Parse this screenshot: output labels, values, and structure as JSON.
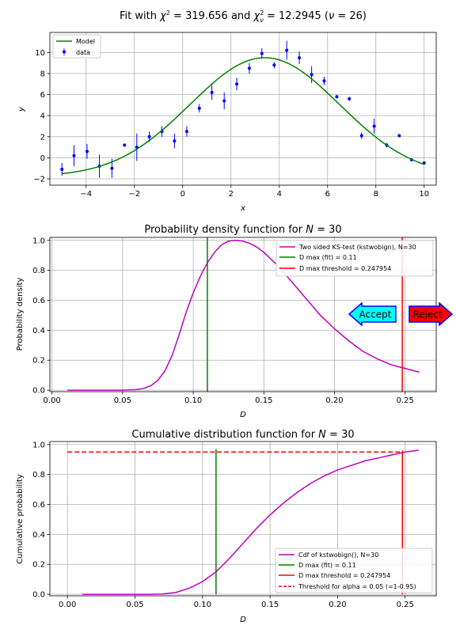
{
  "colors": {
    "model": "#008000",
    "data": "#0000ff",
    "curve": "#bf00bf",
    "dmax": "#008000",
    "threshold": "#ff0000",
    "accept_fill": "#00ffff",
    "reject_fill": "#ff0000",
    "arrow_edge": "#0000ff",
    "grid": "#b0b0b0"
  },
  "chart_data": [
    {
      "type": "scatter",
      "title": "Fit with χ² = 319.656 and χ²ᵥ = 12.2945 (ν = 26)",
      "title_parts": {
        "pre": "Fit with ",
        "chi": "χ",
        "sq": "2",
        "mid": " = 319.656 and ",
        "chi2": "χ",
        "sq2": "2",
        "nu_sub": "ν",
        "post": " = 12.2945 (",
        "nu": "ν",
        "post2": " = 26)"
      },
      "xlabel": "x",
      "ylabel": "y",
      "xlim": [
        -5.5,
        10.5
      ],
      "ylim": [
        -2.6,
        11.9
      ],
      "xticks": [
        -4,
        -2,
        0,
        2,
        4,
        6,
        8,
        10
      ],
      "yticks": [
        -2,
        0,
        2,
        4,
        6,
        8,
        10
      ],
      "grid": true,
      "legend": "top-left",
      "legend_entries": {
        "model": "Model",
        "data": "data"
      },
      "model": {
        "amplitude": 11.3,
        "center": 3.4,
        "sigma": 3.1,
        "offset": -1.8
      },
      "points": [
        {
          "x": -5.0,
          "y": -1.1,
          "err": 0.6
        },
        {
          "x": -4.5,
          "y": 0.2,
          "err": 1.0
        },
        {
          "x": -3.96,
          "y": 0.6,
          "err": 0.7
        },
        {
          "x": -3.45,
          "y": -0.8,
          "err": 1.1
        },
        {
          "x": -2.93,
          "y": -1.0,
          "err": 0.9
        },
        {
          "x": -2.41,
          "y": 1.2,
          "err": 0.15
        },
        {
          "x": -1.9,
          "y": 1.0,
          "err": 1.3
        },
        {
          "x": -1.38,
          "y": 2.0,
          "err": 0.5
        },
        {
          "x": -0.86,
          "y": 2.5,
          "err": 0.5
        },
        {
          "x": -0.34,
          "y": 1.6,
          "err": 0.7
        },
        {
          "x": 0.17,
          "y": 2.5,
          "err": 0.5
        },
        {
          "x": 0.69,
          "y": 4.7,
          "err": 0.4
        },
        {
          "x": 1.21,
          "y": 6.2,
          "err": 0.7
        },
        {
          "x": 1.72,
          "y": 5.4,
          "err": 0.8
        },
        {
          "x": 2.24,
          "y": 7.0,
          "err": 0.6
        },
        {
          "x": 2.76,
          "y": 8.5,
          "err": 0.5
        },
        {
          "x": 3.28,
          "y": 9.9,
          "err": 0.5
        },
        {
          "x": 3.79,
          "y": 8.8,
          "err": 0.3
        },
        {
          "x": 4.31,
          "y": 10.2,
          "err": 0.9
        },
        {
          "x": 4.83,
          "y": 9.5,
          "err": 0.6
        },
        {
          "x": 5.34,
          "y": 7.9,
          "err": 0.8
        },
        {
          "x": 5.86,
          "y": 7.3,
          "err": 0.4
        },
        {
          "x": 6.38,
          "y": 5.8,
          "err": 0.15
        },
        {
          "x": 6.9,
          "y": 5.6,
          "err": 0.2
        },
        {
          "x": 7.41,
          "y": 2.1,
          "err": 0.3
        },
        {
          "x": 7.93,
          "y": 3.0,
          "err": 0.7
        },
        {
          "x": 8.45,
          "y": 1.2,
          "err": 0.2
        },
        {
          "x": 8.97,
          "y": 2.1,
          "err": 0.15
        },
        {
          "x": 9.48,
          "y": -0.2,
          "err": 0.1
        },
        {
          "x": 10.0,
          "y": -0.5,
          "err": 0.1
        }
      ]
    },
    {
      "type": "line",
      "title_prefix": "Probability density function for ",
      "title_n": "N",
      "title_eq": " = 30",
      "xlabel": "D",
      "ylabel": "Probability density",
      "xlim": [
        -0.0015,
        0.272
      ],
      "ylim": [
        -0.01,
        1.02
      ],
      "xticks": [
        0.0,
        0.05,
        0.1,
        0.15,
        0.2,
        0.25
      ],
      "xtick_labels": [
        "0.00",
        "0.05",
        "0.10",
        "0.15",
        "0.20",
        "0.25"
      ],
      "yticks": [
        0.0,
        0.2,
        0.4,
        0.6,
        0.8,
        1.0
      ],
      "ytick_labels": [
        "0.0",
        "0.2",
        "0.4",
        "0.6",
        "0.8",
        "1.0"
      ],
      "grid": true,
      "legend": "top-right",
      "series_name": "Two sided KS-test (kstwobign), N=30",
      "x": [
        0.011,
        0.05,
        0.06,
        0.065,
        0.07,
        0.075,
        0.08,
        0.085,
        0.09,
        0.095,
        0.1,
        0.105,
        0.11,
        0.115,
        0.12,
        0.125,
        0.13,
        0.135,
        0.14,
        0.145,
        0.15,
        0.16,
        0.17,
        0.18,
        0.19,
        0.2,
        0.21,
        0.22,
        0.23,
        0.24,
        0.25,
        0.26
      ],
      "values": [
        0.0,
        0.0,
        0.004,
        0.012,
        0.03,
        0.066,
        0.13,
        0.23,
        0.37,
        0.52,
        0.65,
        0.76,
        0.85,
        0.92,
        0.97,
        0.995,
        1.0,
        0.995,
        0.98,
        0.955,
        0.92,
        0.83,
        0.72,
        0.61,
        0.5,
        0.41,
        0.33,
        0.26,
        0.21,
        0.17,
        0.145,
        0.12
      ],
      "dmax_label": "D max (fit) = 0.11",
      "dmax": 0.11,
      "threshold_label": "D max threshold = 0.247954",
      "threshold": 0.247954,
      "accept_label": "Accept",
      "reject_label": "Reject",
      "annotation_y": 0.5
    },
    {
      "type": "line",
      "title_prefix": "Cumulative distribution function for ",
      "title_n": "N",
      "title_eq": " = 30",
      "xlabel": "D",
      "ylabel": "Cumulative probability",
      "xlim": [
        -0.013,
        0.273
      ],
      "ylim": [
        -0.01,
        1.02
      ],
      "xticks": [
        0.0,
        0.05,
        0.1,
        0.15,
        0.2,
        0.25
      ],
      "xtick_labels": [
        "0.00",
        "0.05",
        "0.10",
        "0.15",
        "0.20",
        "0.25"
      ],
      "yticks": [
        0.0,
        0.2,
        0.4,
        0.6,
        0.8,
        1.0
      ],
      "ytick_labels": [
        "0.0",
        "0.2",
        "0.4",
        "0.6",
        "0.8",
        "1.0"
      ],
      "grid": true,
      "legend": "bottom-right",
      "series_name": "Cdf of kstwobign(), N=30",
      "x": [
        0.011,
        0.06,
        0.07,
        0.08,
        0.09,
        0.1,
        0.11,
        0.12,
        0.13,
        0.14,
        0.15,
        0.16,
        0.17,
        0.18,
        0.19,
        0.2,
        0.21,
        0.22,
        0.23,
        0.24,
        0.25,
        0.26
      ],
      "values": [
        0.0,
        0.0,
        0.002,
        0.012,
        0.04,
        0.085,
        0.15,
        0.24,
        0.34,
        0.44,
        0.53,
        0.61,
        0.68,
        0.74,
        0.79,
        0.83,
        0.86,
        0.89,
        0.91,
        0.93,
        0.95,
        0.962
      ],
      "dmax_label": "D max (fit) = 0.11",
      "dmax": 0.11,
      "threshold_label": "D max threshold = 0.247954",
      "threshold": 0.247954,
      "alpha_label": "Threshold for alpha = 0.05 (=1-0.95)",
      "alpha_level": 0.95
    }
  ]
}
